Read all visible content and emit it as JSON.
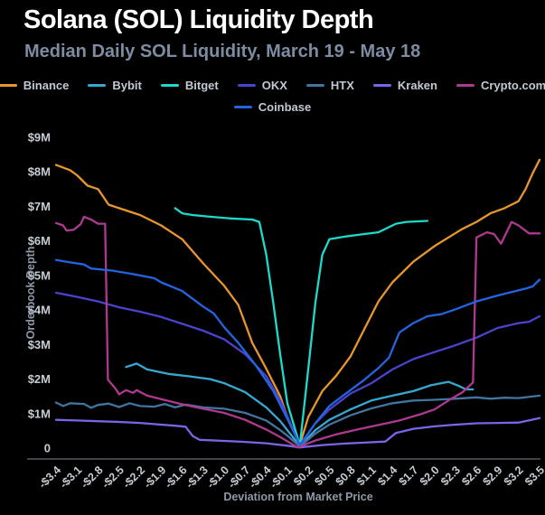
{
  "header": {
    "title": "Solana (SOL) Liquidity Depth",
    "subtitle": "Median Daily SOL Liquidity, March 19 - May 18"
  },
  "colors": {
    "background": "#000000",
    "title_text": "#ffffff",
    "subtitle_text": "#7d8ca2",
    "tick_label": "#c6ccd4",
    "axis_title": "#8d99a6",
    "axis_line": "#54595e"
  },
  "chart_data": {
    "type": "line",
    "title": "Solana (SOL) Liquidity Depth",
    "subtitle": "Median Daily SOL Liquidity, March 19 - May 18",
    "xlabel": "Deviation from Market Price",
    "ylabel": "Orderbook Depth",
    "unit": "$M USD orderbook depth",
    "grid": false,
    "legend_position": "top",
    "xlim": [
      -3.4,
      3.5
    ],
    "ylim": [
      0,
      9
    ],
    "x_tick_labels": [
      "-$3.4",
      "-$3.1",
      "-$2.8",
      "-$2.5",
      "-$2.2",
      "-$1.9",
      "-$1.6",
      "-$1.3",
      "-$1.0",
      "-$0.7",
      "-$0.4",
      "-$0.1",
      "$0.2",
      "$0.5",
      "$0.8",
      "$1.1",
      "$1.4",
      "$1.7",
      "$2.0",
      "$2.3",
      "$2.6",
      "$2.9",
      "$3.2",
      "$3.5"
    ],
    "x_tick_values": [
      -3.4,
      -3.1,
      -2.8,
      -2.5,
      -2.2,
      -1.9,
      -1.6,
      -1.3,
      -1.0,
      -0.7,
      -0.4,
      -0.1,
      0.2,
      0.5,
      0.8,
      1.1,
      1.4,
      1.7,
      2.0,
      2.3,
      2.6,
      2.9,
      3.2,
      3.5
    ],
    "y_tick_labels": [
      "0",
      "$1M",
      "$2M",
      "$3M",
      "$4M",
      "$5M",
      "$6M",
      "$7M",
      "$8M",
      "$9M"
    ],
    "y_tick_values": [
      0,
      1,
      2,
      3,
      4,
      5,
      6,
      7,
      8,
      9
    ],
    "legend_rows": [
      [
        "Binance",
        "Bybit",
        "Bitget",
        "OKX",
        "HTX",
        "Kraken",
        "Crypto.com"
      ],
      [
        "Coinbase"
      ]
    ],
    "series": [
      {
        "name": "Binance",
        "color": "#E8962E",
        "points": [
          [
            -3.4,
            8.2
          ],
          [
            -3.2,
            8.05
          ],
          [
            -3.1,
            7.9
          ],
          [
            -2.95,
            7.6
          ],
          [
            -2.8,
            7.5
          ],
          [
            -2.65,
            7.05
          ],
          [
            -2.5,
            6.95
          ],
          [
            -2.2,
            6.75
          ],
          [
            -1.9,
            6.45
          ],
          [
            -1.6,
            6.05
          ],
          [
            -1.3,
            5.35
          ],
          [
            -1.0,
            4.7
          ],
          [
            -0.8,
            4.15
          ],
          [
            -0.6,
            3.05
          ],
          [
            -0.4,
            2.3
          ],
          [
            -0.2,
            1.5
          ],
          [
            -0.1,
            0.9
          ],
          [
            0.08,
            0.1
          ],
          [
            0.2,
            0.9
          ],
          [
            0.4,
            1.65
          ],
          [
            0.6,
            2.1
          ],
          [
            0.8,
            2.65
          ],
          [
            1.0,
            3.45
          ],
          [
            1.2,
            4.25
          ],
          [
            1.4,
            4.8
          ],
          [
            1.7,
            5.4
          ],
          [
            2.0,
            5.85
          ],
          [
            2.2,
            6.1
          ],
          [
            2.4,
            6.35
          ],
          [
            2.6,
            6.55
          ],
          [
            2.8,
            6.8
          ],
          [
            3.0,
            6.95
          ],
          [
            3.2,
            7.15
          ],
          [
            3.3,
            7.5
          ],
          [
            3.4,
            7.95
          ],
          [
            3.5,
            8.35
          ]
        ]
      },
      {
        "name": "Bybit",
        "color": "#38A8D0",
        "points": [
          [
            -2.4,
            2.35
          ],
          [
            -2.25,
            2.45
          ],
          [
            -2.1,
            2.28
          ],
          [
            -1.8,
            2.15
          ],
          [
            -1.5,
            2.08
          ],
          [
            -1.2,
            2.0
          ],
          [
            -1.0,
            1.88
          ],
          [
            -0.7,
            1.62
          ],
          [
            -0.4,
            1.18
          ],
          [
            -0.2,
            0.78
          ],
          [
            -0.1,
            0.52
          ],
          [
            0.08,
            0.06
          ],
          [
            0.3,
            0.52
          ],
          [
            0.5,
            0.82
          ],
          [
            0.8,
            1.12
          ],
          [
            1.1,
            1.38
          ],
          [
            1.4,
            1.52
          ],
          [
            1.7,
            1.65
          ],
          [
            1.95,
            1.82
          ],
          [
            2.2,
            1.92
          ],
          [
            2.35,
            1.8
          ],
          [
            2.45,
            1.7
          ],
          [
            2.55,
            1.7
          ]
        ]
      },
      {
        "name": "Bitget",
        "color": "#1FD9CC",
        "points": [
          [
            -1.7,
            6.95
          ],
          [
            -1.6,
            6.8
          ],
          [
            -1.45,
            6.75
          ],
          [
            -1.2,
            6.7
          ],
          [
            -0.9,
            6.65
          ],
          [
            -0.6,
            6.62
          ],
          [
            -0.5,
            6.55
          ],
          [
            -0.4,
            5.6
          ],
          [
            -0.3,
            4.2
          ],
          [
            -0.2,
            2.7
          ],
          [
            -0.1,
            1.3
          ],
          [
            0.08,
            0.08
          ],
          [
            0.2,
            2.3
          ],
          [
            0.3,
            4.2
          ],
          [
            0.4,
            5.6
          ],
          [
            0.5,
            6.05
          ],
          [
            0.7,
            6.12
          ],
          [
            1.0,
            6.2
          ],
          [
            1.2,
            6.25
          ],
          [
            1.45,
            6.5
          ],
          [
            1.6,
            6.55
          ],
          [
            1.9,
            6.58
          ]
        ]
      },
      {
        "name": "OKX",
        "color": "#4A44CC",
        "points": [
          [
            -3.4,
            4.5
          ],
          [
            -3.1,
            4.38
          ],
          [
            -2.8,
            4.25
          ],
          [
            -2.5,
            4.08
          ],
          [
            -2.2,
            3.95
          ],
          [
            -1.9,
            3.8
          ],
          [
            -1.6,
            3.6
          ],
          [
            -1.3,
            3.4
          ],
          [
            -1.0,
            3.15
          ],
          [
            -0.7,
            2.72
          ],
          [
            -0.4,
            2.08
          ],
          [
            -0.2,
            1.38
          ],
          [
            -0.1,
            0.92
          ],
          [
            0.08,
            0.07
          ],
          [
            0.3,
            0.72
          ],
          [
            0.5,
            1.12
          ],
          [
            0.8,
            1.58
          ],
          [
            1.1,
            1.88
          ],
          [
            1.4,
            2.28
          ],
          [
            1.7,
            2.58
          ],
          [
            2.0,
            2.78
          ],
          [
            2.3,
            2.98
          ],
          [
            2.6,
            3.2
          ],
          [
            2.9,
            3.48
          ],
          [
            3.2,
            3.62
          ],
          [
            3.35,
            3.66
          ],
          [
            3.5,
            3.82
          ]
        ]
      },
      {
        "name": "HTX",
        "color": "#41749F",
        "points": [
          [
            -3.4,
            1.32
          ],
          [
            -3.3,
            1.22
          ],
          [
            -3.2,
            1.3
          ],
          [
            -3.0,
            1.28
          ],
          [
            -2.9,
            1.17
          ],
          [
            -2.8,
            1.25
          ],
          [
            -2.65,
            1.29
          ],
          [
            -2.5,
            1.19
          ],
          [
            -2.35,
            1.3
          ],
          [
            -2.2,
            1.22
          ],
          [
            -2.0,
            1.2
          ],
          [
            -1.85,
            1.28
          ],
          [
            -1.7,
            1.18
          ],
          [
            -1.55,
            1.26
          ],
          [
            -1.3,
            1.18
          ],
          [
            -1.0,
            1.14
          ],
          [
            -0.7,
            1.02
          ],
          [
            -0.4,
            0.8
          ],
          [
            -0.2,
            0.52
          ],
          [
            -0.1,
            0.36
          ],
          [
            0.08,
            0.05
          ],
          [
            0.3,
            0.42
          ],
          [
            0.5,
            0.68
          ],
          [
            0.8,
            0.95
          ],
          [
            1.1,
            1.15
          ],
          [
            1.4,
            1.3
          ],
          [
            1.7,
            1.38
          ],
          [
            2.0,
            1.4
          ],
          [
            2.3,
            1.43
          ],
          [
            2.6,
            1.47
          ],
          [
            2.8,
            1.43
          ],
          [
            3.0,
            1.46
          ],
          [
            3.2,
            1.45
          ],
          [
            3.5,
            1.52
          ]
        ]
      },
      {
        "name": "Kraken",
        "color": "#7C64E4",
        "points": [
          [
            -3.4,
            0.82
          ],
          [
            -3.1,
            0.8
          ],
          [
            -2.8,
            0.78
          ],
          [
            -2.5,
            0.76
          ],
          [
            -2.2,
            0.73
          ],
          [
            -1.9,
            0.68
          ],
          [
            -1.7,
            0.65
          ],
          [
            -1.55,
            0.62
          ],
          [
            -1.45,
            0.35
          ],
          [
            -1.35,
            0.24
          ],
          [
            -1.0,
            0.21
          ],
          [
            -0.7,
            0.18
          ],
          [
            -0.4,
            0.14
          ],
          [
            -0.1,
            0.07
          ],
          [
            0.08,
            0.02
          ],
          [
            0.4,
            0.09
          ],
          [
            0.7,
            0.13
          ],
          [
            1.0,
            0.16
          ],
          [
            1.3,
            0.19
          ],
          [
            1.45,
            0.44
          ],
          [
            1.7,
            0.56
          ],
          [
            2.0,
            0.63
          ],
          [
            2.3,
            0.68
          ],
          [
            2.6,
            0.72
          ],
          [
            2.9,
            0.73
          ],
          [
            3.2,
            0.74
          ],
          [
            3.5,
            0.87
          ]
        ]
      },
      {
        "name": "Crypto.com",
        "color": "#AE3A90",
        "points": [
          [
            -3.4,
            6.52
          ],
          [
            -3.3,
            6.45
          ],
          [
            -3.25,
            6.3
          ],
          [
            -3.15,
            6.32
          ],
          [
            -3.05,
            6.48
          ],
          [
            -3.0,
            6.7
          ],
          [
            -2.9,
            6.62
          ],
          [
            -2.8,
            6.5
          ],
          [
            -2.7,
            6.5
          ],
          [
            -2.66,
            1.98
          ],
          [
            -2.55,
            1.72
          ],
          [
            -2.5,
            1.56
          ],
          [
            -2.4,
            1.68
          ],
          [
            -2.3,
            1.6
          ],
          [
            -2.25,
            1.68
          ],
          [
            -2.1,
            1.52
          ],
          [
            -1.9,
            1.42
          ],
          [
            -1.6,
            1.27
          ],
          [
            -1.3,
            1.14
          ],
          [
            -1.0,
            1.02
          ],
          [
            -0.7,
            0.82
          ],
          [
            -0.4,
            0.54
          ],
          [
            -0.2,
            0.32
          ],
          [
            0.05,
            0.02
          ],
          [
            0.3,
            0.22
          ],
          [
            0.6,
            0.4
          ],
          [
            0.9,
            0.54
          ],
          [
            1.2,
            0.67
          ],
          [
            1.5,
            0.8
          ],
          [
            1.8,
            0.98
          ],
          [
            2.0,
            1.12
          ],
          [
            2.2,
            1.38
          ],
          [
            2.4,
            1.62
          ],
          [
            2.55,
            1.9
          ],
          [
            2.6,
            6.1
          ],
          [
            2.75,
            6.25
          ],
          [
            2.85,
            6.2
          ],
          [
            2.95,
            5.92
          ],
          [
            3.1,
            6.55
          ],
          [
            3.2,
            6.45
          ],
          [
            3.35,
            6.22
          ],
          [
            3.5,
            6.22
          ]
        ]
      },
      {
        "name": "Coinbase",
        "color": "#2564E0",
        "points": [
          [
            -3.4,
            5.45
          ],
          [
            -3.2,
            5.38
          ],
          [
            -3.0,
            5.32
          ],
          [
            -2.9,
            5.2
          ],
          [
            -2.6,
            5.14
          ],
          [
            -2.3,
            5.04
          ],
          [
            -2.0,
            4.92
          ],
          [
            -1.9,
            4.8
          ],
          [
            -1.6,
            4.55
          ],
          [
            -1.3,
            4.1
          ],
          [
            -1.15,
            3.9
          ],
          [
            -1.0,
            3.5
          ],
          [
            -0.8,
            3.05
          ],
          [
            -0.55,
            2.4
          ],
          [
            -0.3,
            1.65
          ],
          [
            -0.1,
            0.85
          ],
          [
            0.08,
            0.1
          ],
          [
            0.3,
            0.72
          ],
          [
            0.5,
            1.22
          ],
          [
            0.8,
            1.68
          ],
          [
            1.0,
            1.98
          ],
          [
            1.2,
            2.32
          ],
          [
            1.35,
            2.62
          ],
          [
            1.5,
            3.35
          ],
          [
            1.7,
            3.62
          ],
          [
            1.9,
            3.82
          ],
          [
            2.1,
            3.88
          ],
          [
            2.3,
            4.02
          ],
          [
            2.6,
            4.25
          ],
          [
            2.9,
            4.42
          ],
          [
            3.1,
            4.52
          ],
          [
            3.3,
            4.62
          ],
          [
            3.4,
            4.68
          ],
          [
            3.5,
            4.88
          ]
        ]
      }
    ]
  }
}
